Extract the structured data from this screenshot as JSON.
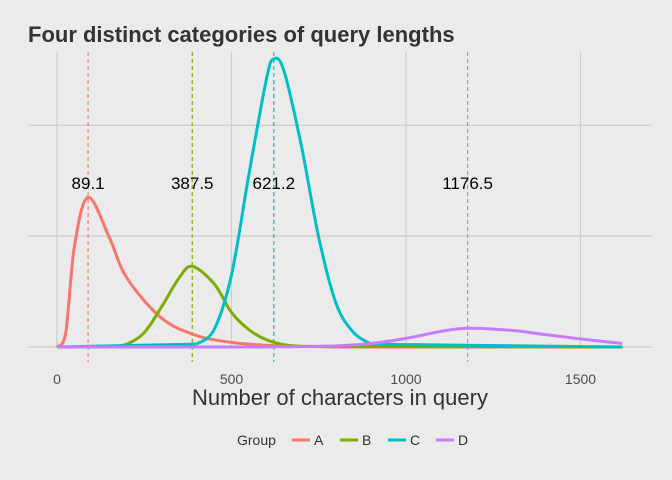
{
  "chart_data": {
    "type": "line",
    "title": "Four distinct categories of query lengths",
    "xlabel": "Number of characters in query",
    "ylabel": "",
    "xlim": [
      -30,
      1700
    ],
    "ylim": [
      0,
      1
    ],
    "x_ticks": [
      0,
      500,
      1000,
      1500
    ],
    "x_tick_labels": [
      "0",
      "500",
      "1000",
      "1500"
    ],
    "y_gridlines": [
      0,
      0.385,
      0.77
    ],
    "grid": true,
    "legend": {
      "title": "Group",
      "position": "bottom"
    },
    "series": [
      {
        "name": "A",
        "color": "#F8766D",
        "mean": 89.1,
        "peak": 0.52,
        "x": [
          0,
          25,
          50,
          89.1,
          150,
          200,
          300,
          400,
          500,
          600,
          700,
          800
        ],
        "values": [
          0,
          0.05,
          0.35,
          0.52,
          0.38,
          0.24,
          0.1,
          0.04,
          0.016,
          0.006,
          0.002,
          0
        ]
      },
      {
        "name": "B",
        "color": "#7CAE00",
        "mean": 387.5,
        "peak": 0.28,
        "x": [
          150,
          200,
          250,
          300,
          350,
          387.5,
          450,
          500,
          550,
          600,
          650,
          700
        ],
        "values": [
          0,
          0.01,
          0.05,
          0.14,
          0.24,
          0.28,
          0.22,
          0.12,
          0.06,
          0.025,
          0.008,
          0.002
        ]
      },
      {
        "name": "C",
        "color": "#00BFC4",
        "mean": 621.2,
        "peak": 1.0,
        "x": [
          400,
          450,
          500,
          550,
          600,
          621.2,
          650,
          700,
          750,
          800,
          850,
          900
        ],
        "values": [
          0.01,
          0.06,
          0.25,
          0.6,
          0.93,
          1.0,
          0.96,
          0.7,
          0.38,
          0.15,
          0.05,
          0.01
        ]
      },
      {
        "name": "D",
        "color": "#C77CFF",
        "mean": 1176.5,
        "peak": 0.065,
        "x": [
          600,
          800,
          900,
          1000,
          1100,
          1176.5,
          1300,
          1400,
          1500,
          1620
        ],
        "values": [
          0,
          0.004,
          0.012,
          0.03,
          0.054,
          0.065,
          0.058,
          0.043,
          0.028,
          0.012
        ]
      }
    ],
    "vlines": [
      {
        "x": 89.1,
        "label": "89.1",
        "color": "#F8766D"
      },
      {
        "x": 387.5,
        "label": "387.5",
        "color": "#7CAE00"
      },
      {
        "x": 621.2,
        "label": "621.2",
        "color": "#00BFC4"
      },
      {
        "x": 1176.5,
        "label": "1176.5",
        "color": "#C77CFF"
      }
    ],
    "annotation_y": 0.57
  }
}
